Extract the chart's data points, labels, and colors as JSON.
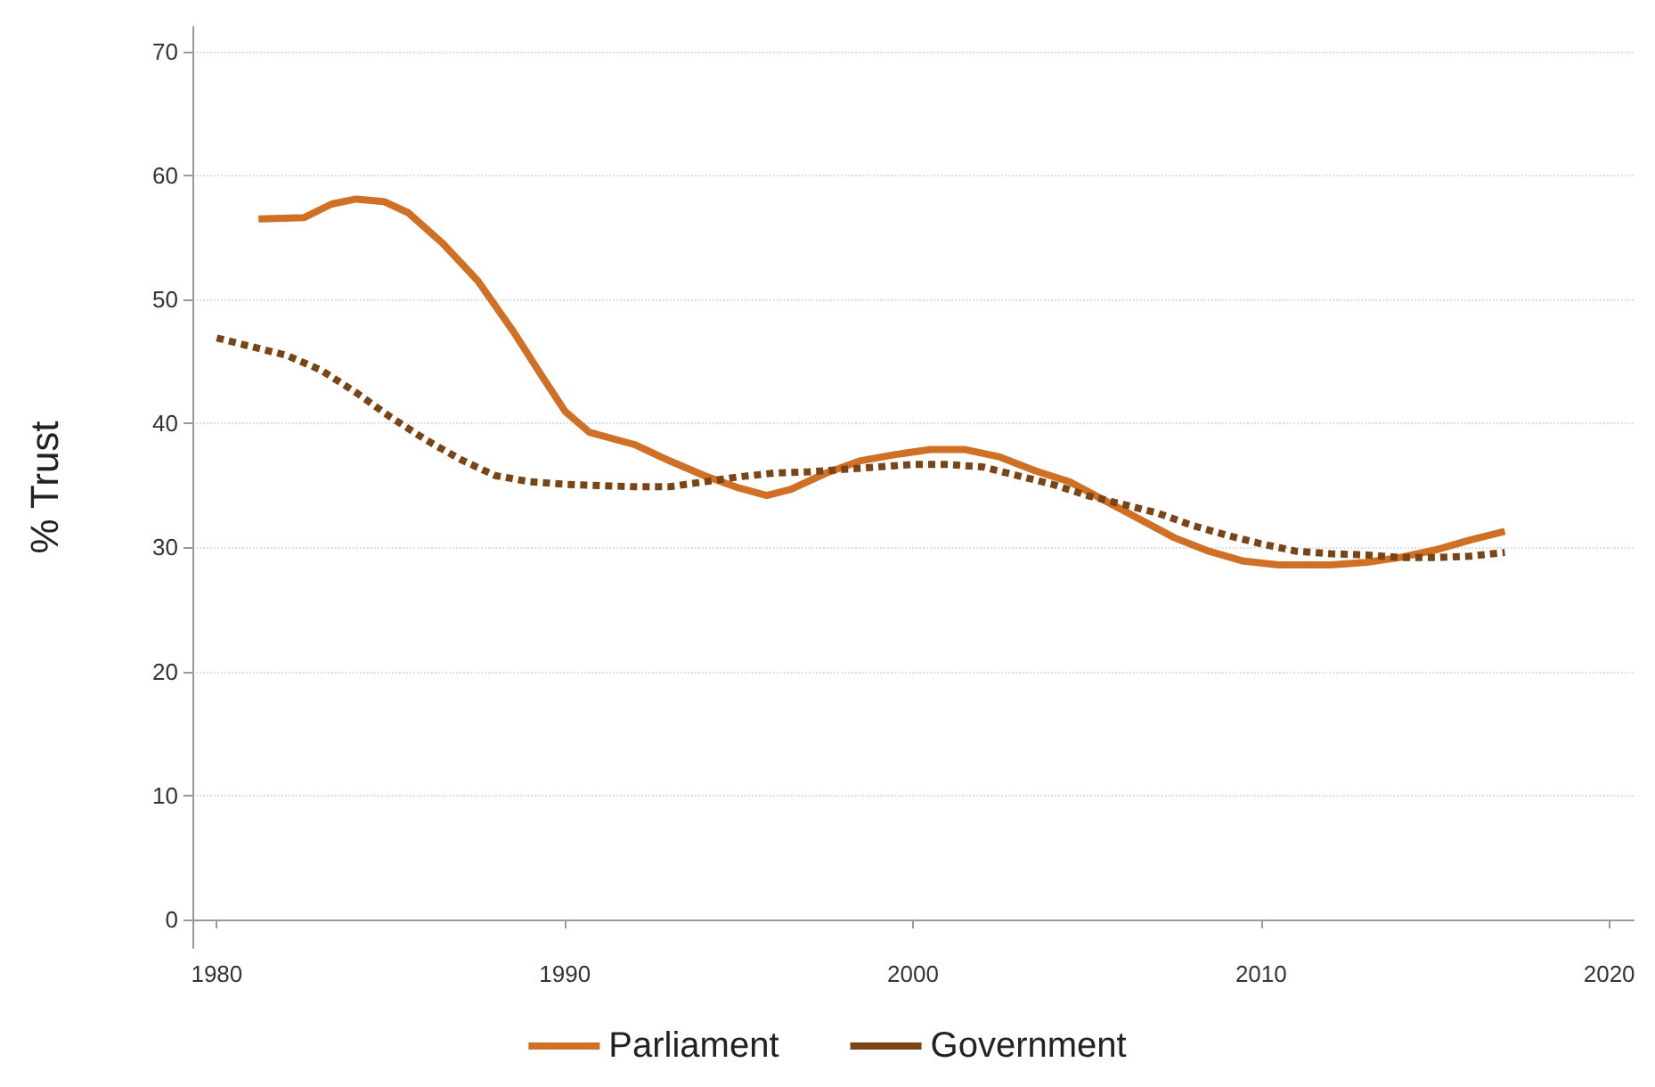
{
  "chart_data": {
    "type": "line",
    "ylabel": "% Trust",
    "xlim": [
      1979.3,
      2020.7
    ],
    "xticks": [
      1980,
      1990,
      2000,
      2010,
      2020
    ],
    "ylim": [
      -2.3,
      72
    ],
    "yticks": [
      0,
      10,
      20,
      30,
      40,
      50,
      60,
      70
    ],
    "grid": "y",
    "legend": "bottom",
    "marker": "none",
    "series": [
      {
        "name": "Parliament",
        "color": "#d07024",
        "line_style": "solid",
        "x": [
          1981.2,
          1982.5,
          1983.3,
          1984,
          1984.8,
          1985.5,
          1986.5,
          1987.5,
          1988.5,
          1989.3,
          1990,
          1990.7,
          1992,
          1993,
          1994,
          1995,
          1995.8,
          1996.5,
          1997.5,
          1998.5,
          1999.5,
          2000.5,
          2001.5,
          2002.5,
          2003.5,
          2004.5,
          2005.5,
          2006.5,
          2007.5,
          2008.5,
          2009.5,
          2010.5,
          2012,
          2013,
          2014,
          2015,
          2016,
          2017
        ],
        "values": [
          56.5,
          56.6,
          57.7,
          58.1,
          57.9,
          57,
          54.5,
          51.5,
          47.5,
          44,
          41,
          39.3,
          38.3,
          37,
          35.8,
          34.8,
          34.2,
          34.7,
          36,
          37,
          37.5,
          37.9,
          37.9,
          37.3,
          36.2,
          35.3,
          33.8,
          32.3,
          30.8,
          29.7,
          28.9,
          28.6,
          28.6,
          28.8,
          29.2,
          29.8,
          30.6,
          31.3
        ]
      },
      {
        "name": "Government",
        "color": "#7a4516",
        "line_style": "dashed",
        "x": [
          1980,
          1981,
          1982,
          1983,
          1984,
          1985,
          1986,
          1987,
          1988,
          1989,
          1990,
          1991,
          1992,
          1993,
          1994,
          1995,
          1996,
          1997,
          1998,
          1999,
          2000,
          2001,
          2002,
          2003,
          2004,
          2005,
          2006,
          2007,
          2008,
          2009,
          2010,
          2011,
          2012,
          2013,
          2014,
          2015,
          2016,
          2017
        ],
        "values": [
          46.9,
          46.2,
          45.5,
          44.3,
          42.5,
          40.5,
          38.7,
          37.1,
          35.8,
          35.3,
          35.1,
          35,
          34.9,
          34.9,
          35.3,
          35.7,
          36,
          36.1,
          36.3,
          36.5,
          36.7,
          36.7,
          36.5,
          35.8,
          35.1,
          34.2,
          33.5,
          32.8,
          31.8,
          31,
          30.3,
          29.7,
          29.5,
          29.4,
          29.2,
          29.2,
          29.3,
          29.6
        ]
      }
    ]
  }
}
